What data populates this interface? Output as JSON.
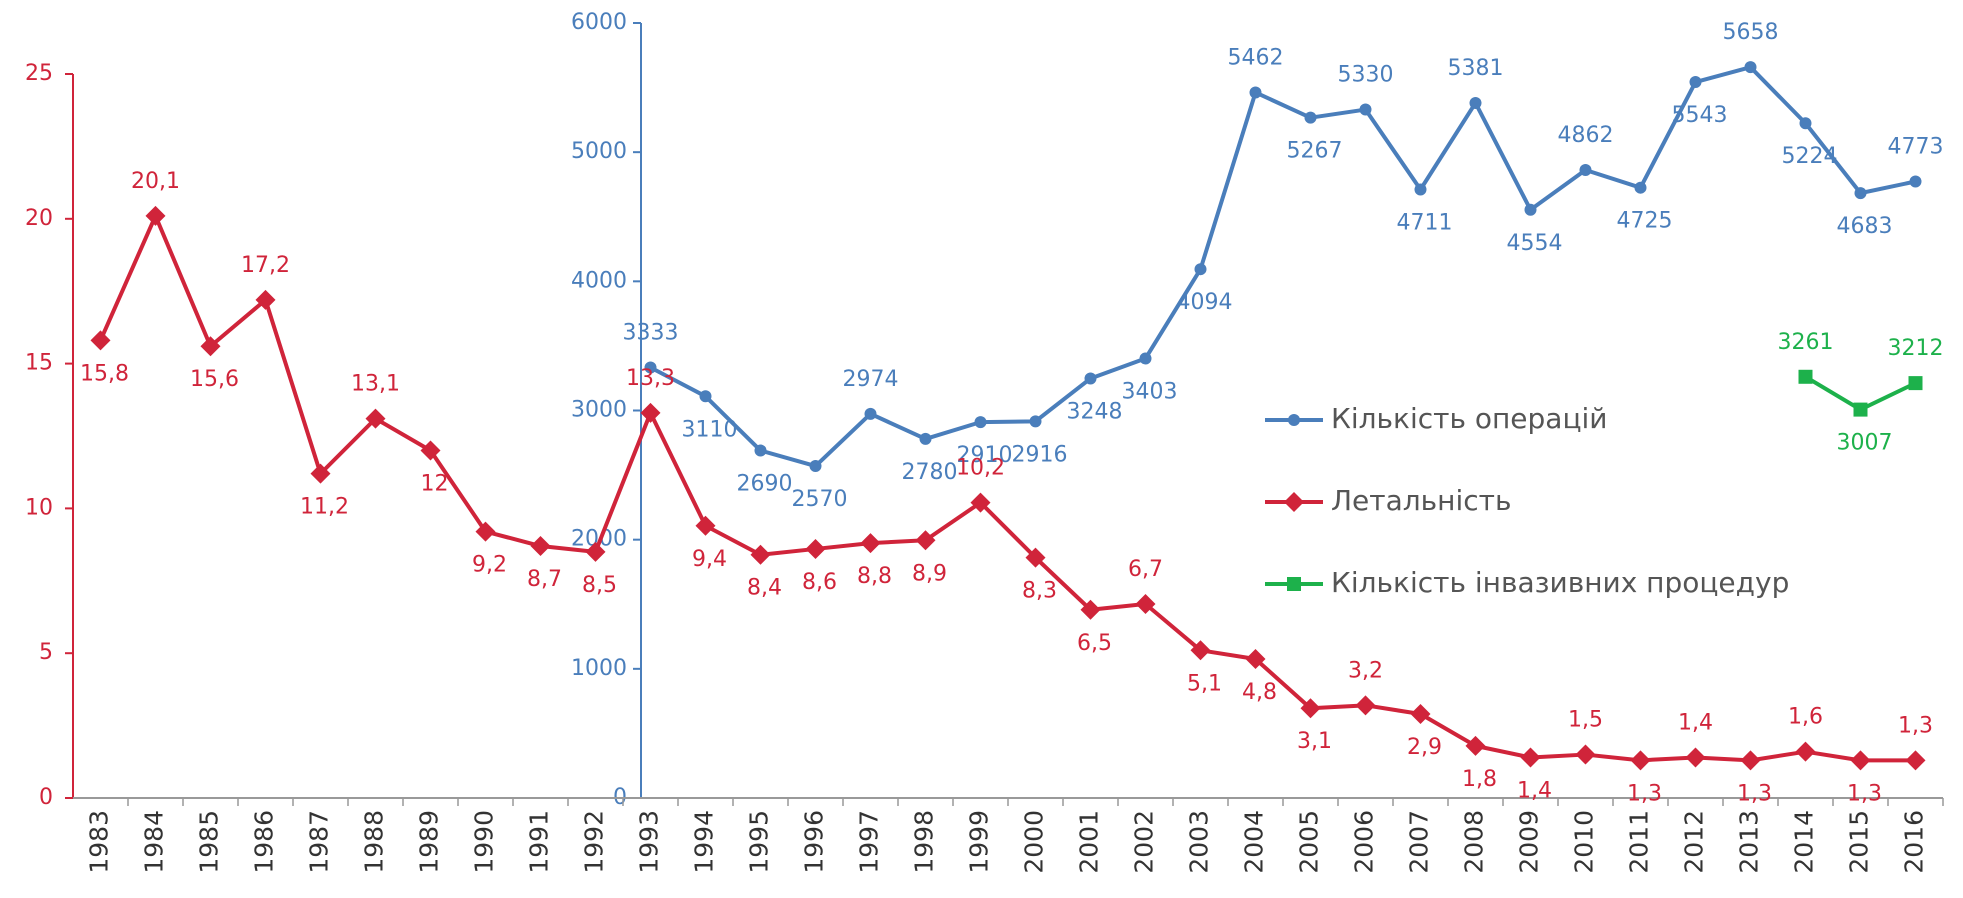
{
  "chart_data": {
    "type": "line",
    "categories": [
      "1983",
      "1984",
      "1985",
      "1986",
      "1987",
      "1988",
      "1989",
      "1990",
      "1991",
      "1992",
      "1993",
      "1994",
      "1995",
      "1996",
      "1997",
      "1998",
      "1999",
      "2000",
      "2001",
      "2002",
      "2003",
      "2004",
      "2005",
      "2006",
      "2007",
      "2008",
      "2009",
      "2010",
      "2011",
      "2012",
      "2013",
      "2014",
      "2015",
      "2016"
    ],
    "ylim": [
      0,
      25
    ],
    "yticks": [
      0,
      5,
      10,
      15,
      20,
      25
    ],
    "y2lim": [
      0,
      6000
    ],
    "y2ticks": [
      0,
      1000,
      2000,
      3000,
      4000,
      5000,
      6000
    ],
    "legend": "right",
    "series": [
      {
        "name": "Кількість операцій",
        "color": "#4a7ebb",
        "marker": "circle",
        "axis": "y2",
        "values": [
          null,
          null,
          null,
          null,
          null,
          null,
          null,
          null,
          null,
          null,
          3333,
          3110,
          2690,
          2570,
          2974,
          2780,
          2910,
          2916,
          3248,
          3403,
          4094,
          5462,
          5267,
          5330,
          4711,
          5381,
          4554,
          4862,
          4725,
          5543,
          5658,
          5224,
          4683,
          4773
        ]
      },
      {
        "name": "Летальність",
        "color": "#d0243a",
        "marker": "diamond",
        "values": [
          15.8,
          20.1,
          15.6,
          17.2,
          11.2,
          13.1,
          12,
          9.2,
          8.7,
          8.5,
          13.3,
          9.4,
          8.4,
          8.6,
          8.8,
          8.9,
          10.2,
          8.3,
          6.5,
          6.7,
          5.1,
          4.8,
          3.1,
          3.2,
          2.9,
          1.8,
          1.4,
          1.5,
          1.3,
          1.4,
          1.3,
          1.6,
          1.3,
          1.3
        ],
        "value_labels": [
          "15,8",
          "20,1",
          "15,6",
          "17,2",
          "11,2",
          "13,1",
          "12",
          "9,2",
          "8,7",
          "8,5",
          "13,3",
          "9,4",
          "8,4",
          "8,6",
          "8,8",
          "8,9",
          "10,2",
          "8,3",
          "6,5",
          "6,7",
          "5,1",
          "4,8",
          "3,1",
          "3,2",
          "2,9",
          "1,8",
          "1,4",
          "1,5",
          "1,3",
          "1,4",
          "1,3",
          "1,6",
          "1,3",
          "1,3"
        ]
      },
      {
        "name": "Кількість інвазивних процедур",
        "color": "#1db14b",
        "marker": "square",
        "axis": "y2",
        "values": [
          null,
          null,
          null,
          null,
          null,
          null,
          null,
          null,
          null,
          null,
          null,
          null,
          null,
          null,
          null,
          null,
          null,
          null,
          null,
          null,
          null,
          null,
          null,
          null,
          null,
          null,
          null,
          null,
          null,
          null,
          null,
          3261,
          3007,
          3212
        ]
      }
    ]
  }
}
